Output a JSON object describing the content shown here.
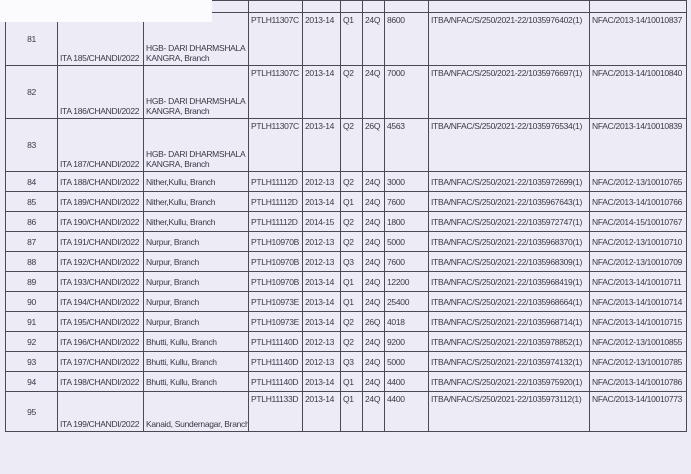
{
  "rows": [
    {
      "sno": "81",
      "ita": "ITA 185/CHANDI/2022",
      "branch": "HGB- DARI DHARMSHALA KANGRA, Branch",
      "pan": "PTLH11307C",
      "year": "2013-14",
      "q": "Q1",
      "form": "24Q",
      "amount": "8600",
      "din": "ITBA/NFAC/S/250/2021-22/1035976402(1)",
      "nfac": "NFAC/2013-14/10010837"
    },
    {
      "sno": "82",
      "ita": "ITA 186/CHANDI/2022",
      "branch": "HGB- DARI DHARMSHALA KANGRA, Branch",
      "pan": "PTLH11307C",
      "year": "2013-14",
      "q": "Q2",
      "form": "24Q",
      "amount": "7000",
      "din": "ITBA/NFAC/S/250/2021-22/1035976697(1)",
      "nfac": "NFAC/2013-14/10010840"
    },
    {
      "sno": "83",
      "ita": "ITA 187/CHANDI/2022",
      "branch": "HGB- DARI DHARMSHALA KANGRA, Branch",
      "pan": "PTLH11307C",
      "year": "2013-14",
      "q": "Q2",
      "form": "26Q",
      "amount": "4563",
      "din": "ITBA/NFAC/S/250/2021-22/1035976534(1)",
      "nfac": "NFAC/2013-14/10010839"
    },
    {
      "sno": "84",
      "ita": "ITA 188/CHANDI/2022",
      "branch": "Nither,Kullu, Branch",
      "pan": "PTLH11112D",
      "year": "2012-13",
      "q": "Q2",
      "form": "24Q",
      "amount": "3000",
      "din": "ITBA/NFAC/S/250/2021-22/1035972699(1)",
      "nfac": "NFAC/2012-13/10010765"
    },
    {
      "sno": "85",
      "ita": "ITA 189/CHANDI/2022",
      "branch": "Nither,Kullu, Branch",
      "pan": "PTLH11112D",
      "year": "2013-14",
      "q": "Q1",
      "form": "24Q",
      "amount": "7600",
      "din": "ITBA/NFAC/S/250/2021-22/1035967643(1)",
      "nfac": "NFAC/2013-14/10010766"
    },
    {
      "sno": "86",
      "ita": "ITA 190/CHANDI/2022",
      "branch": "Nither,Kullu, Branch",
      "pan": "PTLH11112D",
      "year": "2014-15",
      "q": "Q2",
      "form": "24Q",
      "amount": "1800",
      "din": "ITBA/NFAC/S/250/2021-22/1035972747(1)",
      "nfac": "NFAC/2014-15/10010767"
    },
    {
      "sno": "87",
      "ita": "ITA 191/CHANDI/2022",
      "branch": "Nurpur, Branch",
      "pan": "PTLH10970B",
      "year": "2012-13",
      "q": "Q2",
      "form": "24Q",
      "amount": "5000",
      "din": "ITBA/NFAC/S/250/2021-22/1035968370(1)",
      "nfac": "NFAC/2012-13/10010710"
    },
    {
      "sno": "88",
      "ita": "ITA 192/CHANDI/2022",
      "branch": "Nurpur, Branch",
      "pan": "PTLH10970B",
      "year": "2012-13",
      "q": "Q3",
      "form": "24Q",
      "amount": "7600",
      "din": "ITBA/NFAC/S/250/2021-22/1035968309(1)",
      "nfac": "NFAC/2012-13/10010709"
    },
    {
      "sno": "89",
      "ita": "ITA 193/CHANDI/2022",
      "branch": "Nurpur, Branch",
      "pan": "PTLH10970B",
      "year": "2013-14",
      "q": "Q1",
      "form": "24Q",
      "amount": "12200",
      "din": "ITBA/NFAC/S/250/2021-22/1035968419(1)",
      "nfac": "NFAC/2013-14/10010711"
    },
    {
      "sno": "90",
      "ita": "ITA 194/CHANDI/2022",
      "branch": "Nurpur, Branch",
      "pan": "PTLH10973E",
      "year": "2013-14",
      "q": "Q1",
      "form": "24Q",
      "amount": "25400",
      "din": "ITBA/NFAC/S/250/2021-22/1035968664(1)",
      "nfac": "NFAC/2013-14/10010714"
    },
    {
      "sno": "91",
      "ita": "ITA 195/CHANDI/2022",
      "branch": "Nurpur, Branch",
      "pan": "PTLH10973E",
      "year": "2013-14",
      "q": "Q2",
      "form": "26Q",
      "amount": "4018",
      "din": "ITBA/NFAC/S/250/2021-22/1035968714(1)",
      "nfac": "NFAC/2013-14/10010715"
    },
    {
      "sno": "92",
      "ita": "ITA 196/CHANDI/2022",
      "branch": "Bhutti, Kullu, Branch",
      "pan": "PTLH11140D",
      "year": "2012-13",
      "q": "Q2",
      "form": "24Q",
      "amount": "9200",
      "din": "ITBA/NFAC/S/250/2021-22/1035978852(1)",
      "nfac": "NFAC/2012-13/10010855"
    },
    {
      "sno": "93",
      "ita": "ITA 197/CHANDI/2022",
      "branch": "Bhutti, Kullu, Branch",
      "pan": "PTLH11140D",
      "year": "2012-13",
      "q": "Q3",
      "form": "24Q",
      "amount": "5000",
      "din": "ITBA/NFAC/S/250/2021-22/1035974132(1)",
      "nfac": "NFAC/2012-13/10010785"
    },
    {
      "sno": "94",
      "ita": "ITA 198/CHANDI/2022",
      "branch": "Bhutti, Kullu, Branch",
      "pan": "PTLH11140D",
      "year": "2013-14",
      "q": "Q1",
      "form": "24Q",
      "amount": "4400",
      "din": "ITBA/NFAC/S/250/2021-22/1035975920(1)",
      "nfac": "NFAC/2013-14/10010786"
    },
    {
      "sno": "95",
      "ita": "ITA 199/CHANDI/2022",
      "branch": "Kanaid, Sundernagar, Branch",
      "pan": "PTLH11133D",
      "year": "2013-14",
      "q": "Q1",
      "form": "24Q",
      "amount": "4400",
      "din": "ITBA/NFAC/S/250/2021-22/1035973112(1)",
      "nfac": "NFAC/2013-14/10010773"
    }
  ]
}
